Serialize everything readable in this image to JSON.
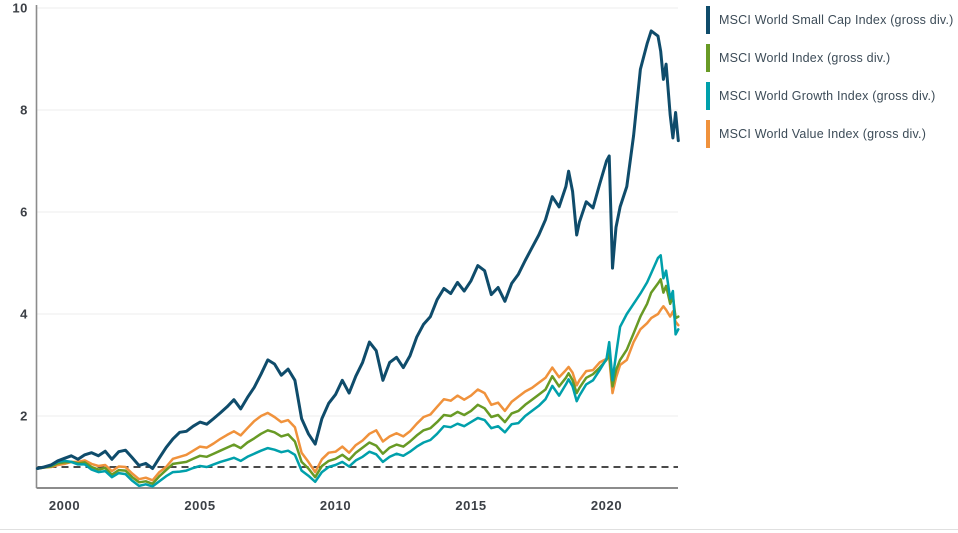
{
  "page": {
    "background": "#ffffff",
    "divider_color": "#e0e0e0"
  },
  "chart_data": {
    "type": "line",
    "title": "",
    "xlabel": "",
    "ylabel": "",
    "x_range": [
      1999.0,
      2022.65
    ],
    "y_range_visible": [
      0.57,
      10.1
    ],
    "x_ticks": [
      "2000",
      "2005",
      "2010",
      "2015",
      "2020"
    ],
    "x_tick_years": [
      2000,
      2005,
      2010,
      2015,
      2020
    ],
    "y_ticks": [
      2,
      4,
      6,
      8,
      10
    ],
    "grid": "horizontal",
    "legend_position": "outside-top-right",
    "reference_line": {
      "value": 1,
      "style": "dashed",
      "color": "#4a4a4a"
    },
    "style": {
      "grid_color": "#ededed",
      "axis_color": "#8c8c8c",
      "tick_label_color": "#3c4046",
      "background": "#ffffff"
    },
    "x": [
      1999,
      1999.25,
      1999.5,
      1999.75,
      2000,
      2000.25,
      2000.5,
      2000.75,
      2001,
      2001.25,
      2001.5,
      2001.75,
      2002,
      2002.25,
      2002.5,
      2002.75,
      2003,
      2003.25,
      2003.5,
      2003.75,
      2004,
      2004.25,
      2004.5,
      2004.75,
      2005,
      2005.25,
      2005.5,
      2005.75,
      2006,
      2006.25,
      2006.5,
      2006.75,
      2007,
      2007.25,
      2007.5,
      2007.75,
      2008,
      2008.25,
      2008.5,
      2008.75,
      2009,
      2009.25,
      2009.5,
      2009.75,
      2010,
      2010.25,
      2010.5,
      2010.75,
      2011,
      2011.25,
      2011.5,
      2011.75,
      2012,
      2012.25,
      2012.5,
      2012.75,
      2013,
      2013.25,
      2013.5,
      2013.75,
      2014,
      2014.25,
      2014.5,
      2014.75,
      2015,
      2015.25,
      2015.5,
      2015.75,
      2016,
      2016.25,
      2016.5,
      2016.75,
      2017,
      2017.25,
      2017.5,
      2017.75,
      2018,
      2018.25,
      2018.5,
      2018.6,
      2018.75,
      2018.9,
      2019,
      2019.25,
      2019.5,
      2019.75,
      2020,
      2020.1,
      2020.22,
      2020.35,
      2020.5,
      2020.75,
      2021,
      2021.25,
      2021.5,
      2021.65,
      2021.9,
      2022,
      2022.1,
      2022.2,
      2022.35,
      2022.45,
      2022.55,
      2022.65
    ],
    "series": [
      {
        "name": "MSCI World Small Cap Index (gross div.)",
        "color": "#0f4c6b",
        "values": [
          0.97,
          1.0,
          1.04,
          1.12,
          1.17,
          1.22,
          1.15,
          1.24,
          1.28,
          1.22,
          1.31,
          1.15,
          1.3,
          1.33,
          1.18,
          1.03,
          1.07,
          0.97,
          1.18,
          1.38,
          1.55,
          1.68,
          1.7,
          1.8,
          1.88,
          1.84,
          1.95,
          2.06,
          2.18,
          2.32,
          2.14,
          2.36,
          2.56,
          2.82,
          3.1,
          3.02,
          2.8,
          2.92,
          2.7,
          1.95,
          1.65,
          1.45,
          1.95,
          2.25,
          2.42,
          2.7,
          2.45,
          2.78,
          3.05,
          3.45,
          3.28,
          2.7,
          3.05,
          3.15,
          2.95,
          3.18,
          3.55,
          3.8,
          3.95,
          4.28,
          4.5,
          4.4,
          4.62,
          4.45,
          4.65,
          4.95,
          4.85,
          4.38,
          4.52,
          4.25,
          4.6,
          4.78,
          5.05,
          5.3,
          5.55,
          5.85,
          6.3,
          6.1,
          6.5,
          6.8,
          6.4,
          5.55,
          5.8,
          6.2,
          6.08,
          6.55,
          7.0,
          7.1,
          4.9,
          5.7,
          6.1,
          6.5,
          7.5,
          8.8,
          9.3,
          9.55,
          9.45,
          9.15,
          8.6,
          8.9,
          7.9,
          7.45,
          7.95,
          7.4
        ]
      },
      {
        "name": "MSCI World Index (gross div.)",
        "color": "#689a25",
        "values": [
          0.97,
          0.99,
          1.01,
          1.07,
          1.09,
          1.1,
          1.07,
          1.09,
          1.0,
          0.95,
          0.98,
          0.85,
          0.94,
          0.93,
          0.8,
          0.7,
          0.72,
          0.67,
          0.82,
          0.94,
          1.06,
          1.08,
          1.1,
          1.16,
          1.22,
          1.2,
          1.26,
          1.32,
          1.38,
          1.44,
          1.37,
          1.48,
          1.56,
          1.65,
          1.72,
          1.68,
          1.6,
          1.64,
          1.5,
          1.1,
          0.97,
          0.8,
          1.02,
          1.12,
          1.16,
          1.24,
          1.14,
          1.28,
          1.38,
          1.48,
          1.42,
          1.26,
          1.38,
          1.44,
          1.4,
          1.5,
          1.62,
          1.72,
          1.76,
          1.88,
          2.02,
          2.0,
          2.08,
          2.02,
          2.1,
          2.22,
          2.15,
          1.98,
          2.02,
          1.88,
          2.05,
          2.1,
          2.22,
          2.32,
          2.42,
          2.52,
          2.78,
          2.58,
          2.75,
          2.84,
          2.7,
          2.45,
          2.55,
          2.75,
          2.82,
          2.95,
          3.1,
          3.22,
          2.58,
          2.9,
          3.1,
          3.3,
          3.62,
          3.95,
          4.2,
          4.42,
          4.6,
          4.68,
          4.42,
          4.55,
          4.2,
          4.35,
          3.92,
          3.95
        ]
      },
      {
        "name": "MSCI World Growth Index (gross div.)",
        "color": "#00a0ab",
        "values": [
          0.97,
          1.0,
          1.03,
          1.1,
          1.12,
          1.1,
          1.05,
          1.05,
          0.95,
          0.9,
          0.92,
          0.8,
          0.88,
          0.86,
          0.73,
          0.63,
          0.66,
          0.62,
          0.72,
          0.82,
          0.9,
          0.91,
          0.93,
          0.98,
          1.02,
          1.0,
          1.05,
          1.1,
          1.14,
          1.18,
          1.12,
          1.2,
          1.26,
          1.32,
          1.37,
          1.34,
          1.29,
          1.32,
          1.24,
          0.93,
          0.83,
          0.71,
          0.9,
          1.0,
          1.04,
          1.1,
          1.01,
          1.13,
          1.2,
          1.3,
          1.25,
          1.1,
          1.2,
          1.26,
          1.22,
          1.3,
          1.4,
          1.48,
          1.53,
          1.65,
          1.8,
          1.78,
          1.85,
          1.8,
          1.88,
          1.96,
          1.92,
          1.76,
          1.8,
          1.68,
          1.84,
          1.86,
          2.0,
          2.1,
          2.2,
          2.33,
          2.59,
          2.4,
          2.62,
          2.72,
          2.58,
          2.29,
          2.4,
          2.62,
          2.7,
          2.9,
          3.12,
          3.45,
          2.7,
          3.2,
          3.75,
          4.0,
          4.2,
          4.4,
          4.62,
          4.8,
          5.1,
          5.15,
          4.7,
          4.85,
          4.3,
          4.45,
          3.6,
          3.7
        ]
      },
      {
        "name": "MSCI World Value Index (gross div.)",
        "color": "#f0923c",
        "values": [
          0.97,
          0.99,
          1.0,
          1.04,
          1.06,
          1.1,
          1.1,
          1.13,
          1.06,
          1.02,
          1.04,
          0.92,
          1.01,
          1.0,
          0.87,
          0.76,
          0.79,
          0.74,
          0.9,
          1.0,
          1.16,
          1.2,
          1.24,
          1.32,
          1.4,
          1.38,
          1.46,
          1.55,
          1.63,
          1.7,
          1.62,
          1.76,
          1.9,
          2.0,
          2.06,
          1.98,
          1.88,
          1.92,
          1.78,
          1.28,
          1.1,
          0.9,
          1.15,
          1.28,
          1.3,
          1.4,
          1.28,
          1.43,
          1.52,
          1.65,
          1.72,
          1.5,
          1.6,
          1.66,
          1.6,
          1.7,
          1.85,
          1.98,
          2.03,
          2.18,
          2.33,
          2.3,
          2.4,
          2.32,
          2.4,
          2.52,
          2.45,
          2.22,
          2.26,
          2.1,
          2.28,
          2.38,
          2.48,
          2.55,
          2.65,
          2.75,
          2.95,
          2.76,
          2.9,
          2.96,
          2.85,
          2.6,
          2.7,
          2.88,
          2.9,
          3.05,
          3.12,
          3.15,
          2.45,
          2.75,
          3.0,
          3.1,
          3.45,
          3.7,
          3.82,
          3.92,
          4.0,
          4.08,
          4.15,
          4.08,
          3.95,
          4.05,
          3.85,
          3.78
        ]
      }
    ]
  }
}
